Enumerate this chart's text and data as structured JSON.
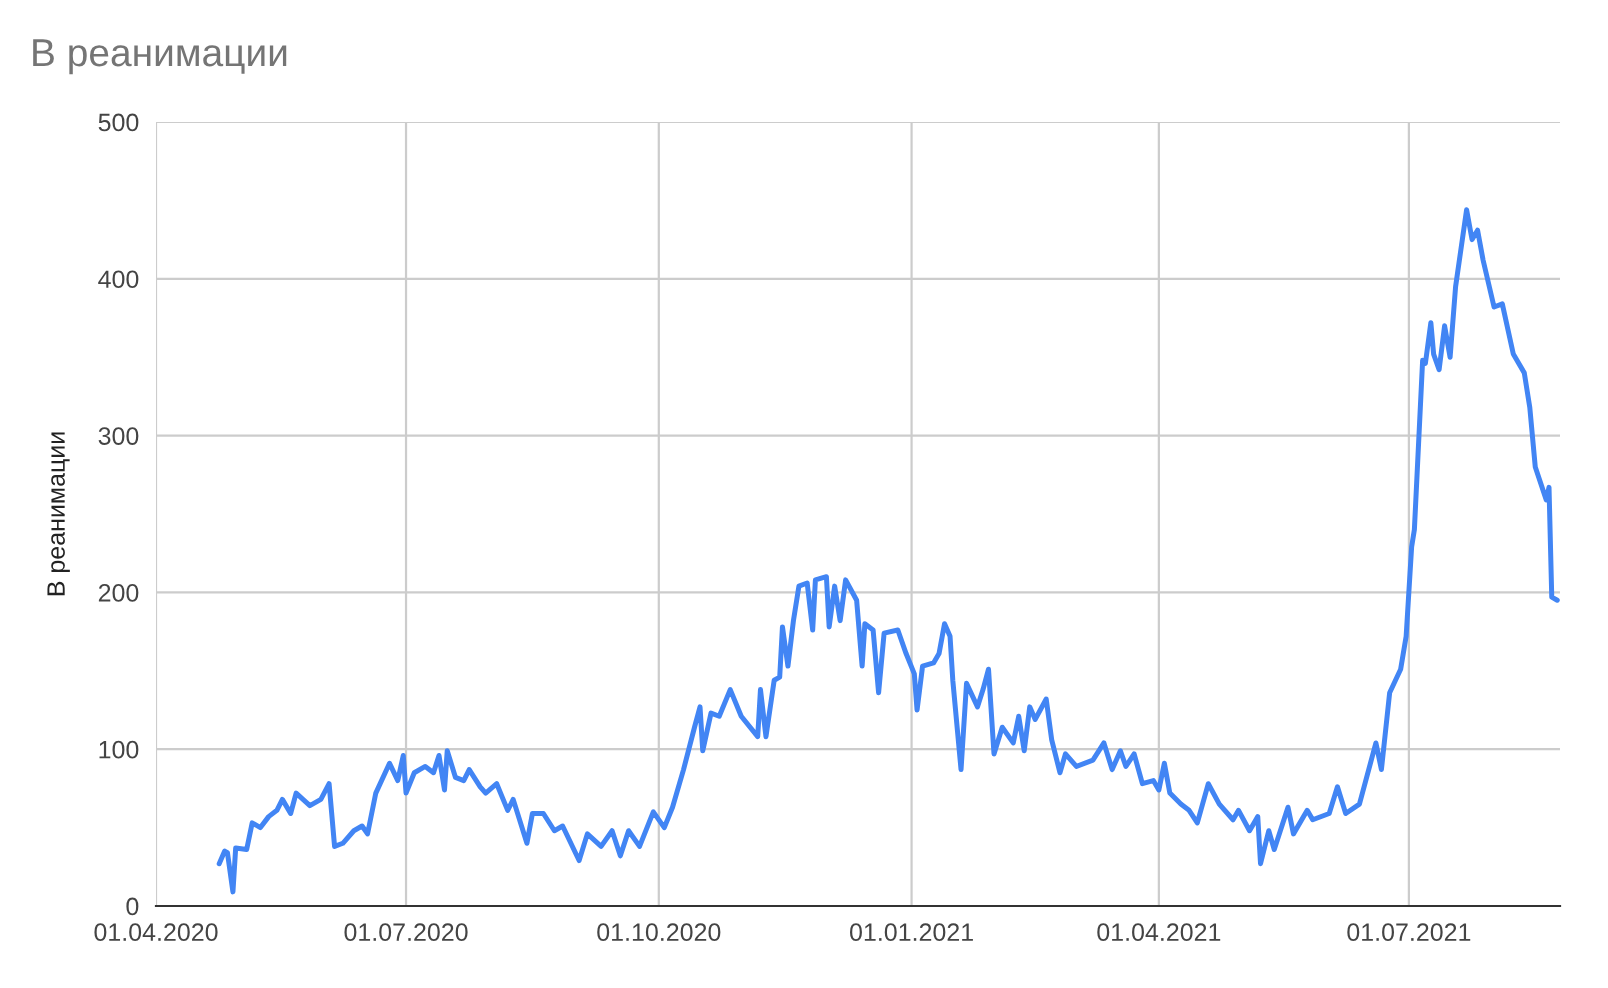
{
  "chart_data": {
    "type": "line",
    "title": "В реанимации",
    "ylabel": "В реанимации",
    "x": [
      "2020-04-24",
      "2020-04-26",
      "2020-04-27",
      "2020-04-29",
      "2020-04-30",
      "2020-05-04",
      "2020-05-06",
      "2020-05-09",
      "2020-05-12",
      "2020-05-15",
      "2020-05-17",
      "2020-05-20",
      "2020-05-22",
      "2020-05-27",
      "2020-05-31",
      "2020-06-03",
      "2020-06-05",
      "2020-06-08",
      "2020-06-12",
      "2020-06-15",
      "2020-06-17",
      "2020-06-20",
      "2020-06-25",
      "2020-06-28",
      "2020-06-30",
      "2020-07-01",
      "2020-07-04",
      "2020-07-08",
      "2020-07-11",
      "2020-07-13",
      "2020-07-15",
      "2020-07-16",
      "2020-07-19",
      "2020-07-22",
      "2020-07-24",
      "2020-07-28",
      "2020-07-30",
      "2020-08-03",
      "2020-08-07",
      "2020-08-09",
      "2020-08-14",
      "2020-08-16",
      "2020-08-20",
      "2020-08-24",
      "2020-08-27",
      "2020-09-02",
      "2020-09-05",
      "2020-09-10",
      "2020-09-14",
      "2020-09-17",
      "2020-09-20",
      "2020-09-24",
      "2020-09-29",
      "2020-10-03",
      "2020-10-06",
      "2020-10-10",
      "2020-10-14",
      "2020-10-16",
      "2020-10-17",
      "2020-10-20",
      "2020-10-23",
      "2020-10-27",
      "2020-10-31",
      "2020-11-06",
      "2020-11-07",
      "2020-11-09",
      "2020-11-12",
      "2020-11-14",
      "2020-11-15",
      "2020-11-17",
      "2020-11-19",
      "2020-11-21",
      "2020-11-24",
      "2020-11-26",
      "2020-11-27",
      "2020-12-01",
      "2020-12-02",
      "2020-12-04",
      "2020-12-06",
      "2020-12-08",
      "2020-12-12",
      "2020-12-14",
      "2020-12-15",
      "2020-12-18",
      "2020-12-20",
      "2020-12-22",
      "2020-12-27",
      "2020-12-30",
      "2021-01-02",
      "2021-01-03",
      "2021-01-05",
      "2021-01-09",
      "2021-01-11",
      "2021-01-13",
      "2021-01-15",
      "2021-01-16",
      "2021-01-19",
      "2021-01-21",
      "2021-01-25",
      "2021-01-27",
      "2021-01-29",
      "2021-01-31",
      "2021-02-03",
      "2021-02-07",
      "2021-02-09",
      "2021-02-11",
      "2021-02-13",
      "2021-02-15",
      "2021-02-19",
      "2021-02-21",
      "2021-02-24",
      "2021-02-26",
      "2021-03-02",
      "2021-03-08",
      "2021-03-12",
      "2021-03-15",
      "2021-03-18",
      "2021-03-20",
      "2021-03-23",
      "2021-03-26",
      "2021-03-30",
      "2021-04-01",
      "2021-04-03",
      "2021-04-05",
      "2021-04-09",
      "2021-04-12",
      "2021-04-15",
      "2021-04-19",
      "2021-04-23",
      "2021-04-28",
      "2021-04-30",
      "2021-05-04",
      "2021-05-07",
      "2021-05-08",
      "2021-05-11",
      "2021-05-13",
      "2021-05-18",
      "2021-05-20",
      "2021-05-25",
      "2021-05-27",
      "2021-06-02",
      "2021-06-05",
      "2021-06-08",
      "2021-06-13",
      "2021-06-19",
      "2021-06-21",
      "2021-06-24",
      "2021-06-28",
      "2021-06-30",
      "2021-07-02",
      "2021-07-03",
      "2021-07-06",
      "2021-07-07",
      "2021-07-09",
      "2021-07-10",
      "2021-07-12",
      "2021-07-14",
      "2021-07-16",
      "2021-07-18",
      "2021-07-22",
      "2021-07-24",
      "2021-07-26",
      "2021-07-28",
      "2021-08-01",
      "2021-08-04",
      "2021-08-08",
      "2021-08-12",
      "2021-08-14",
      "2021-08-16",
      "2021-08-20",
      "2021-08-21",
      "2021-08-22",
      "2021-08-24"
    ],
    "series": [
      {
        "color": "#4285f4",
        "values": [
          27,
          35,
          34,
          9,
          37,
          36,
          53,
          50,
          57,
          61,
          68,
          59,
          72,
          64,
          68,
          78,
          38,
          40,
          48,
          51,
          46,
          72,
          91,
          80,
          96,
          72,
          85,
          89,
          85,
          96,
          74,
          99,
          82,
          80,
          87,
          76,
          72,
          78,
          61,
          68,
          40,
          59,
          59,
          48,
          51,
          29,
          46,
          38,
          48,
          32,
          48,
          38,
          60,
          50,
          63,
          87,
          114,
          127,
          99,
          123,
          121,
          138,
          121,
          108,
          138,
          108,
          144,
          146,
          178,
          153,
          182,
          204,
          206,
          176,
          208,
          210,
          178,
          204,
          182,
          208,
          195,
          153,
          180,
          176,
          136,
          174,
          176,
          161,
          148,
          125,
          153,
          155,
          161,
          180,
          172,
          144,
          87,
          142,
          127,
          138,
          151,
          97,
          114,
          104,
          121,
          99,
          127,
          119,
          132,
          106,
          85,
          97,
          89,
          93,
          104,
          87,
          99,
          89,
          97,
          78,
          80,
          74,
          91,
          72,
          65,
          61,
          53,
          78,
          65,
          55,
          61,
          48,
          57,
          27,
          48,
          36,
          63,
          46,
          61,
          55,
          59,
          76,
          59,
          65,
          104,
          87,
          136,
          151,
          172,
          229,
          240,
          348,
          346,
          372,
          352,
          342,
          370,
          350,
          395,
          444,
          425,
          431,
          412,
          382,
          384,
          352,
          340,
          318,
          280,
          259,
          267,
          197,
          195
        ]
      }
    ],
    "xlim": [
      "2020-04-01",
      "2021-08-25"
    ],
    "xticks": [
      {
        "value": "2020-04-01",
        "label": "01.04.2020"
      },
      {
        "value": "2020-07-01",
        "label": "01.07.2020"
      },
      {
        "value": "2020-10-01",
        "label": "01.10.2020"
      },
      {
        "value": "2021-01-01",
        "label": "01.01.2021"
      },
      {
        "value": "2021-04-01",
        "label": "01.04.2021"
      },
      {
        "value": "2021-07-01",
        "label": "01.07.2021"
      }
    ],
    "ylim": [
      0,
      500
    ],
    "yticks": [
      0,
      100,
      200,
      300,
      400,
      500
    ],
    "grid": true
  }
}
